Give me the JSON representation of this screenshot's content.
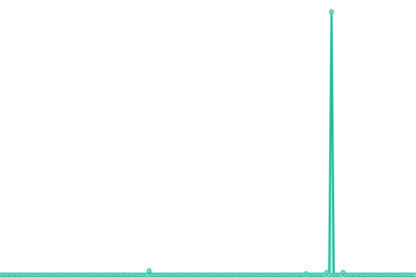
{
  "chart_data": {
    "type": "line",
    "title": "",
    "xlabel": "",
    "ylabel": "",
    "grid": false,
    "legend": "none",
    "ylim": [
      0,
      100
    ],
    "color": "#1abc9c",
    "point_fill": "#76dcc0",
    "area_fill": "#a3e8d5",
    "series": [
      {
        "values": [
          0,
          0,
          0,
          0,
          0,
          0,
          0,
          0,
          0,
          0,
          0,
          0,
          0,
          0,
          0,
          0,
          0,
          0,
          0,
          0,
          0,
          0,
          0,
          0,
          0,
          0,
          0,
          0,
          0,
          0,
          0,
          0,
          0,
          0,
          0,
          0,
          0,
          0,
          0,
          0,
          0,
          0,
          0,
          0,
          0,
          0,
          0,
          0,
          0,
          0,
          0,
          0,
          0,
          0,
          0,
          0,
          0,
          0,
          0,
          0,
          0,
          0,
          0,
          0,
          1.6,
          0,
          0,
          0,
          0,
          0,
          0,
          0,
          0,
          0,
          0,
          0,
          0,
          0,
          0,
          0,
          0,
          0,
          0,
          0,
          0,
          0,
          0,
          0,
          0,
          0,
          0,
          0,
          0,
          0,
          0,
          0,
          0,
          0,
          0,
          0,
          0,
          0,
          0,
          0,
          0,
          0,
          0,
          0,
          0,
          0,
          0,
          0,
          0,
          0,
          0,
          0,
          0,
          0,
          0,
          0,
          0,
          0,
          0,
          0,
          0,
          0,
          0,
          0,
          0,
          0,
          0,
          0,
          0.5,
          0,
          0,
          0,
          0,
          0,
          0,
          0,
          0,
          1,
          0,
          100,
          0,
          0,
          0,
          0,
          1,
          0,
          0,
          0,
          0,
          0,
          0,
          0,
          0,
          0,
          0,
          0,
          0,
          0,
          0,
          0,
          0,
          0,
          0,
          0,
          0,
          0,
          0,
          0,
          0,
          0,
          0,
          0,
          0,
          0,
          0,
          0
        ]
      }
    ]
  }
}
